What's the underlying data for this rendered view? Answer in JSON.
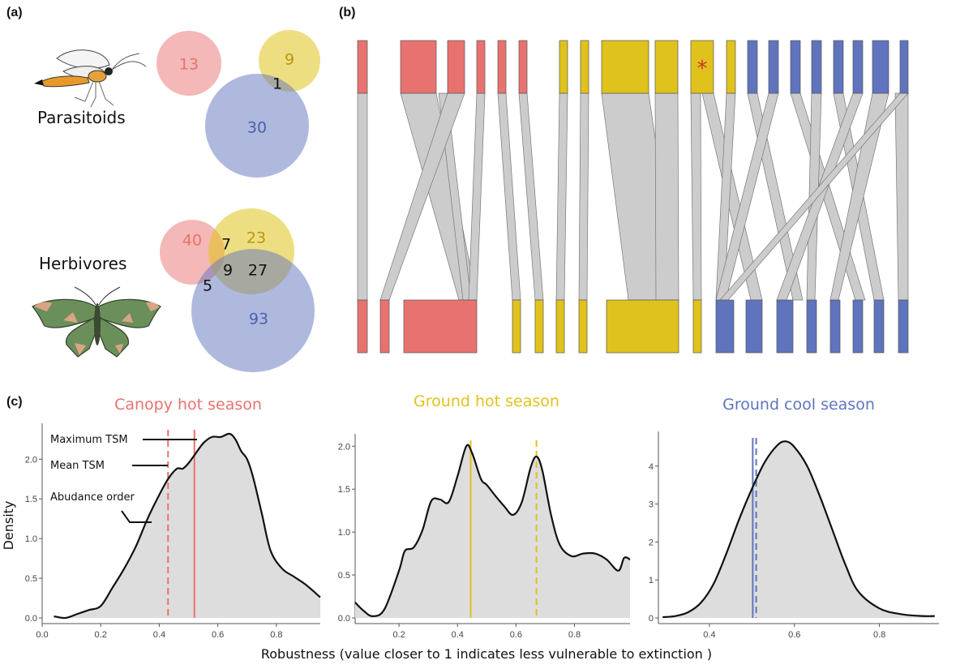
{
  "panels": {
    "a": "(a)",
    "b": "(b)",
    "c": "(c)"
  },
  "colors": {
    "canopy_hot": "#e8726f",
    "ground_hot": "#e0c21c",
    "ground_cool": "#5f74bd",
    "flow": "#cccccc",
    "fill": "#dddddd"
  },
  "venn": {
    "parasitoids": {
      "label": "Parasitoids",
      "canopy_hot": "13",
      "ground_hot": "9",
      "ground_hot_and_cool": "1",
      "ground_cool": "30"
    },
    "herbivores": {
      "label": "Herbivores",
      "canopy_hot": "40",
      "canopy_and_ground_hot": "7",
      "ground_hot": "23",
      "all_three": "9",
      "ground_hot_and_cool": "27",
      "canopy_and_ground_cool": "5",
      "ground_cool": "93"
    }
  },
  "alluvial": {
    "marker": "*"
  },
  "chart_data": [
    {
      "type": "area",
      "title": "Canopy hot season",
      "title_color": "#e8726f",
      "xlim": [
        0,
        0.95
      ],
      "ylim": [
        0,
        2.35
      ],
      "xticks": [
        "0.0",
        "0.2",
        "0.4",
        "0.6",
        "0.8"
      ],
      "xtick_values": [
        0,
        0.2,
        0.4,
        0.6,
        0.8
      ],
      "yticks": [
        "0.0",
        "0.5",
        "1.0",
        "1.5",
        "2.0"
      ],
      "ytick_values": [
        0,
        0.5,
        1,
        1.5,
        2
      ],
      "ylabel": "Density",
      "x": [
        0.04,
        0.08,
        0.12,
        0.16,
        0.2,
        0.24,
        0.28,
        0.32,
        0.36,
        0.4,
        0.43,
        0.46,
        0.48,
        0.5,
        0.52,
        0.55,
        0.58,
        0.61,
        0.64,
        0.66,
        0.68,
        0.7,
        0.72,
        0.75,
        0.78,
        0.82,
        0.86,
        0.9,
        0.95
      ],
      "y": [
        0.02,
        0.0,
        0.05,
        0.1,
        0.15,
        0.38,
        0.62,
        0.9,
        1.25,
        1.55,
        1.75,
        1.88,
        1.88,
        1.95,
        2.05,
        2.2,
        2.28,
        2.28,
        2.32,
        2.25,
        2.1,
        2.0,
        1.78,
        1.32,
        0.85,
        0.62,
        0.52,
        0.42,
        0.26
      ],
      "vlines": [
        {
          "name": "Mean TSM",
          "x": 0.43,
          "style": "dashed",
          "color": "#e8726f"
        },
        {
          "name": "Maximum TSM",
          "x": 0.52,
          "style": "solid",
          "color": "#e8726f"
        }
      ],
      "annotations": [
        "Maximum TSM",
        "Mean TSM",
        "Abudance order"
      ]
    },
    {
      "type": "area",
      "title": "Ground hot season",
      "title_color": "#e0c21c",
      "xlim": [
        0.05,
        0.99
      ],
      "ylim": [
        0,
        2.05
      ],
      "xticks": [
        "0.2",
        "0.4",
        "0.6",
        "0.8"
      ],
      "xtick_values": [
        0.2,
        0.4,
        0.6,
        0.8
      ],
      "yticks": [
        "0.0",
        "0.5",
        "1.0",
        "1.5",
        "2.0"
      ],
      "ytick_values": [
        0,
        0.5,
        1,
        1.5,
        2
      ],
      "x": [
        0.05,
        0.08,
        0.11,
        0.15,
        0.2,
        0.22,
        0.25,
        0.28,
        0.31,
        0.34,
        0.37,
        0.4,
        0.43,
        0.45,
        0.48,
        0.5,
        0.53,
        0.56,
        0.59,
        0.62,
        0.65,
        0.67,
        0.69,
        0.72,
        0.75,
        0.79,
        0.83,
        0.87,
        0.91,
        0.95,
        0.97,
        0.99
      ],
      "y": [
        0.18,
        0.08,
        0.02,
        0.1,
        0.55,
        0.78,
        0.82,
        1.02,
        1.36,
        1.38,
        1.35,
        1.65,
        2.0,
        1.92,
        1.62,
        1.55,
        1.42,
        1.3,
        1.2,
        1.35,
        1.75,
        1.88,
        1.72,
        1.2,
        0.85,
        0.72,
        0.75,
        0.75,
        0.68,
        0.55,
        0.7,
        0.68
      ],
      "vlines": [
        {
          "name": "Maximum TSM",
          "x": 0.445,
          "style": "solid",
          "color": "#e0c21c"
        },
        {
          "name": "Mean TSM",
          "x": 0.67,
          "style": "dashed",
          "color": "#e0c21c"
        }
      ]
    },
    {
      "type": "area",
      "title": "Ground cool season",
      "title_color": "#5f74bd",
      "xlim": [
        0.28,
        0.94
      ],
      "ylim": [
        0,
        4.7
      ],
      "xticks": [
        "0.4",
        "0.6",
        "0.8"
      ],
      "xtick_values": [
        0.4,
        0.6,
        0.8
      ],
      "yticks": [
        "0",
        "1",
        "2",
        "3",
        "4"
      ],
      "ytick_values": [
        0,
        1,
        2,
        3,
        4
      ],
      "x": [
        0.29,
        0.32,
        0.35,
        0.38,
        0.41,
        0.44,
        0.47,
        0.5,
        0.53,
        0.56,
        0.58,
        0.6,
        0.63,
        0.66,
        0.69,
        0.72,
        0.75,
        0.8,
        0.85,
        0.9,
        0.93
      ],
      "y": [
        0.02,
        0.05,
        0.15,
        0.4,
        0.9,
        1.7,
        2.6,
        3.4,
        4.1,
        4.55,
        4.65,
        4.5,
        4.0,
        3.2,
        2.3,
        1.4,
        0.7,
        0.25,
        0.1,
        0.05,
        0.05
      ],
      "vlines": [
        {
          "name": "Maximum TSM",
          "x": 0.502,
          "style": "solid",
          "color": "#5f74bd"
        },
        {
          "name": "Mean TSM",
          "x": 0.51,
          "style": "dashed",
          "color": "#5f74bd"
        }
      ]
    }
  ],
  "xlabel": "Robustness (value closer to 1 indicates less vulnerable to extinction )"
}
